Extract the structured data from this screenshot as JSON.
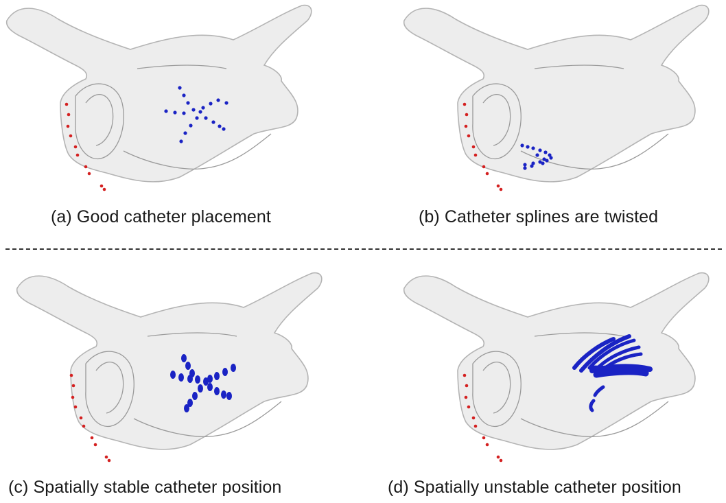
{
  "panels": [
    {
      "id": "a",
      "caption": "(a) Good catheter placement",
      "catheter_pattern": "star",
      "mesh": "left-atrium"
    },
    {
      "id": "b",
      "caption": "(b) Catheter splines are twisted",
      "catheter_pattern": "twisted-cluster",
      "mesh": "left-atrium"
    },
    {
      "id": "c",
      "caption": "(c) Spatially stable catheter position",
      "catheter_pattern": "stable-star",
      "mesh": "left-atrium"
    },
    {
      "id": "d",
      "caption": "(d) Spatially unstable catheter position",
      "catheter_pattern": "smeared-arcs",
      "mesh": "left-atrium"
    }
  ],
  "colors": {
    "catheter_electrodes": "#1a23c4",
    "coronary_sinus_electrodes": "#d42020",
    "mesh": "#ededed",
    "background": "#ffffff"
  }
}
